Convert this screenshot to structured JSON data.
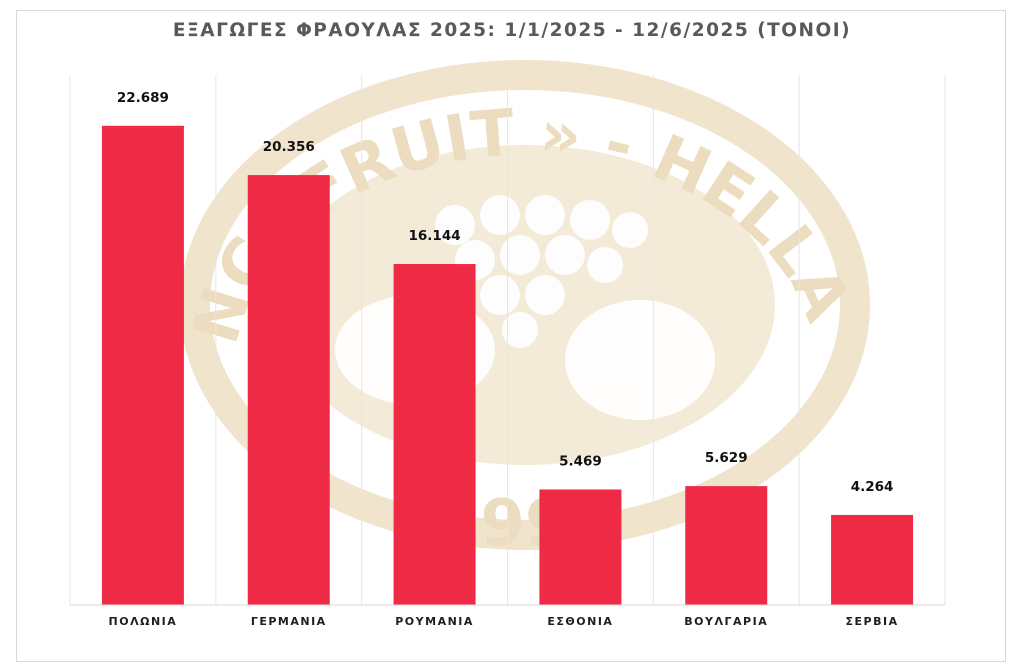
{
  "chart_data": {
    "type": "bar",
    "title": "ΕΞΑΓΩΓΕΣ ΦΡΑΟΥΛΑΣ 2025: 1/1/2025 - 12/6/2025 (ΤΟΝΟΙ)",
    "xlabel": "",
    "ylabel": "",
    "categories": [
      "ΠΟΛΩΝΙΑ",
      "ΓΕΡΜΑΝΙΑ",
      "ΡΟΥΜΑΝΙΑ",
      "ΕΣΘΟΝΙΑ",
      "ΒΟΥΛΓΑΡΙΑ",
      "ΣΕΡΒΙΑ"
    ],
    "values": [
      22689,
      20356,
      16144,
      5469,
      5629,
      4264
    ],
    "data_labels": [
      "22.689",
      "20.356",
      "16.144",
      "5.469",
      "5.629",
      "4.264"
    ],
    "ylim": [
      0,
      25000
    ],
    "grid": "vertical category separators",
    "legend": "none",
    "bar_color": "#ee2a45"
  },
  "watermark": {
    "text_top": "INCOFRUIT » - HELLAS",
    "year": "1994",
    "color": "#ecdcc0"
  }
}
